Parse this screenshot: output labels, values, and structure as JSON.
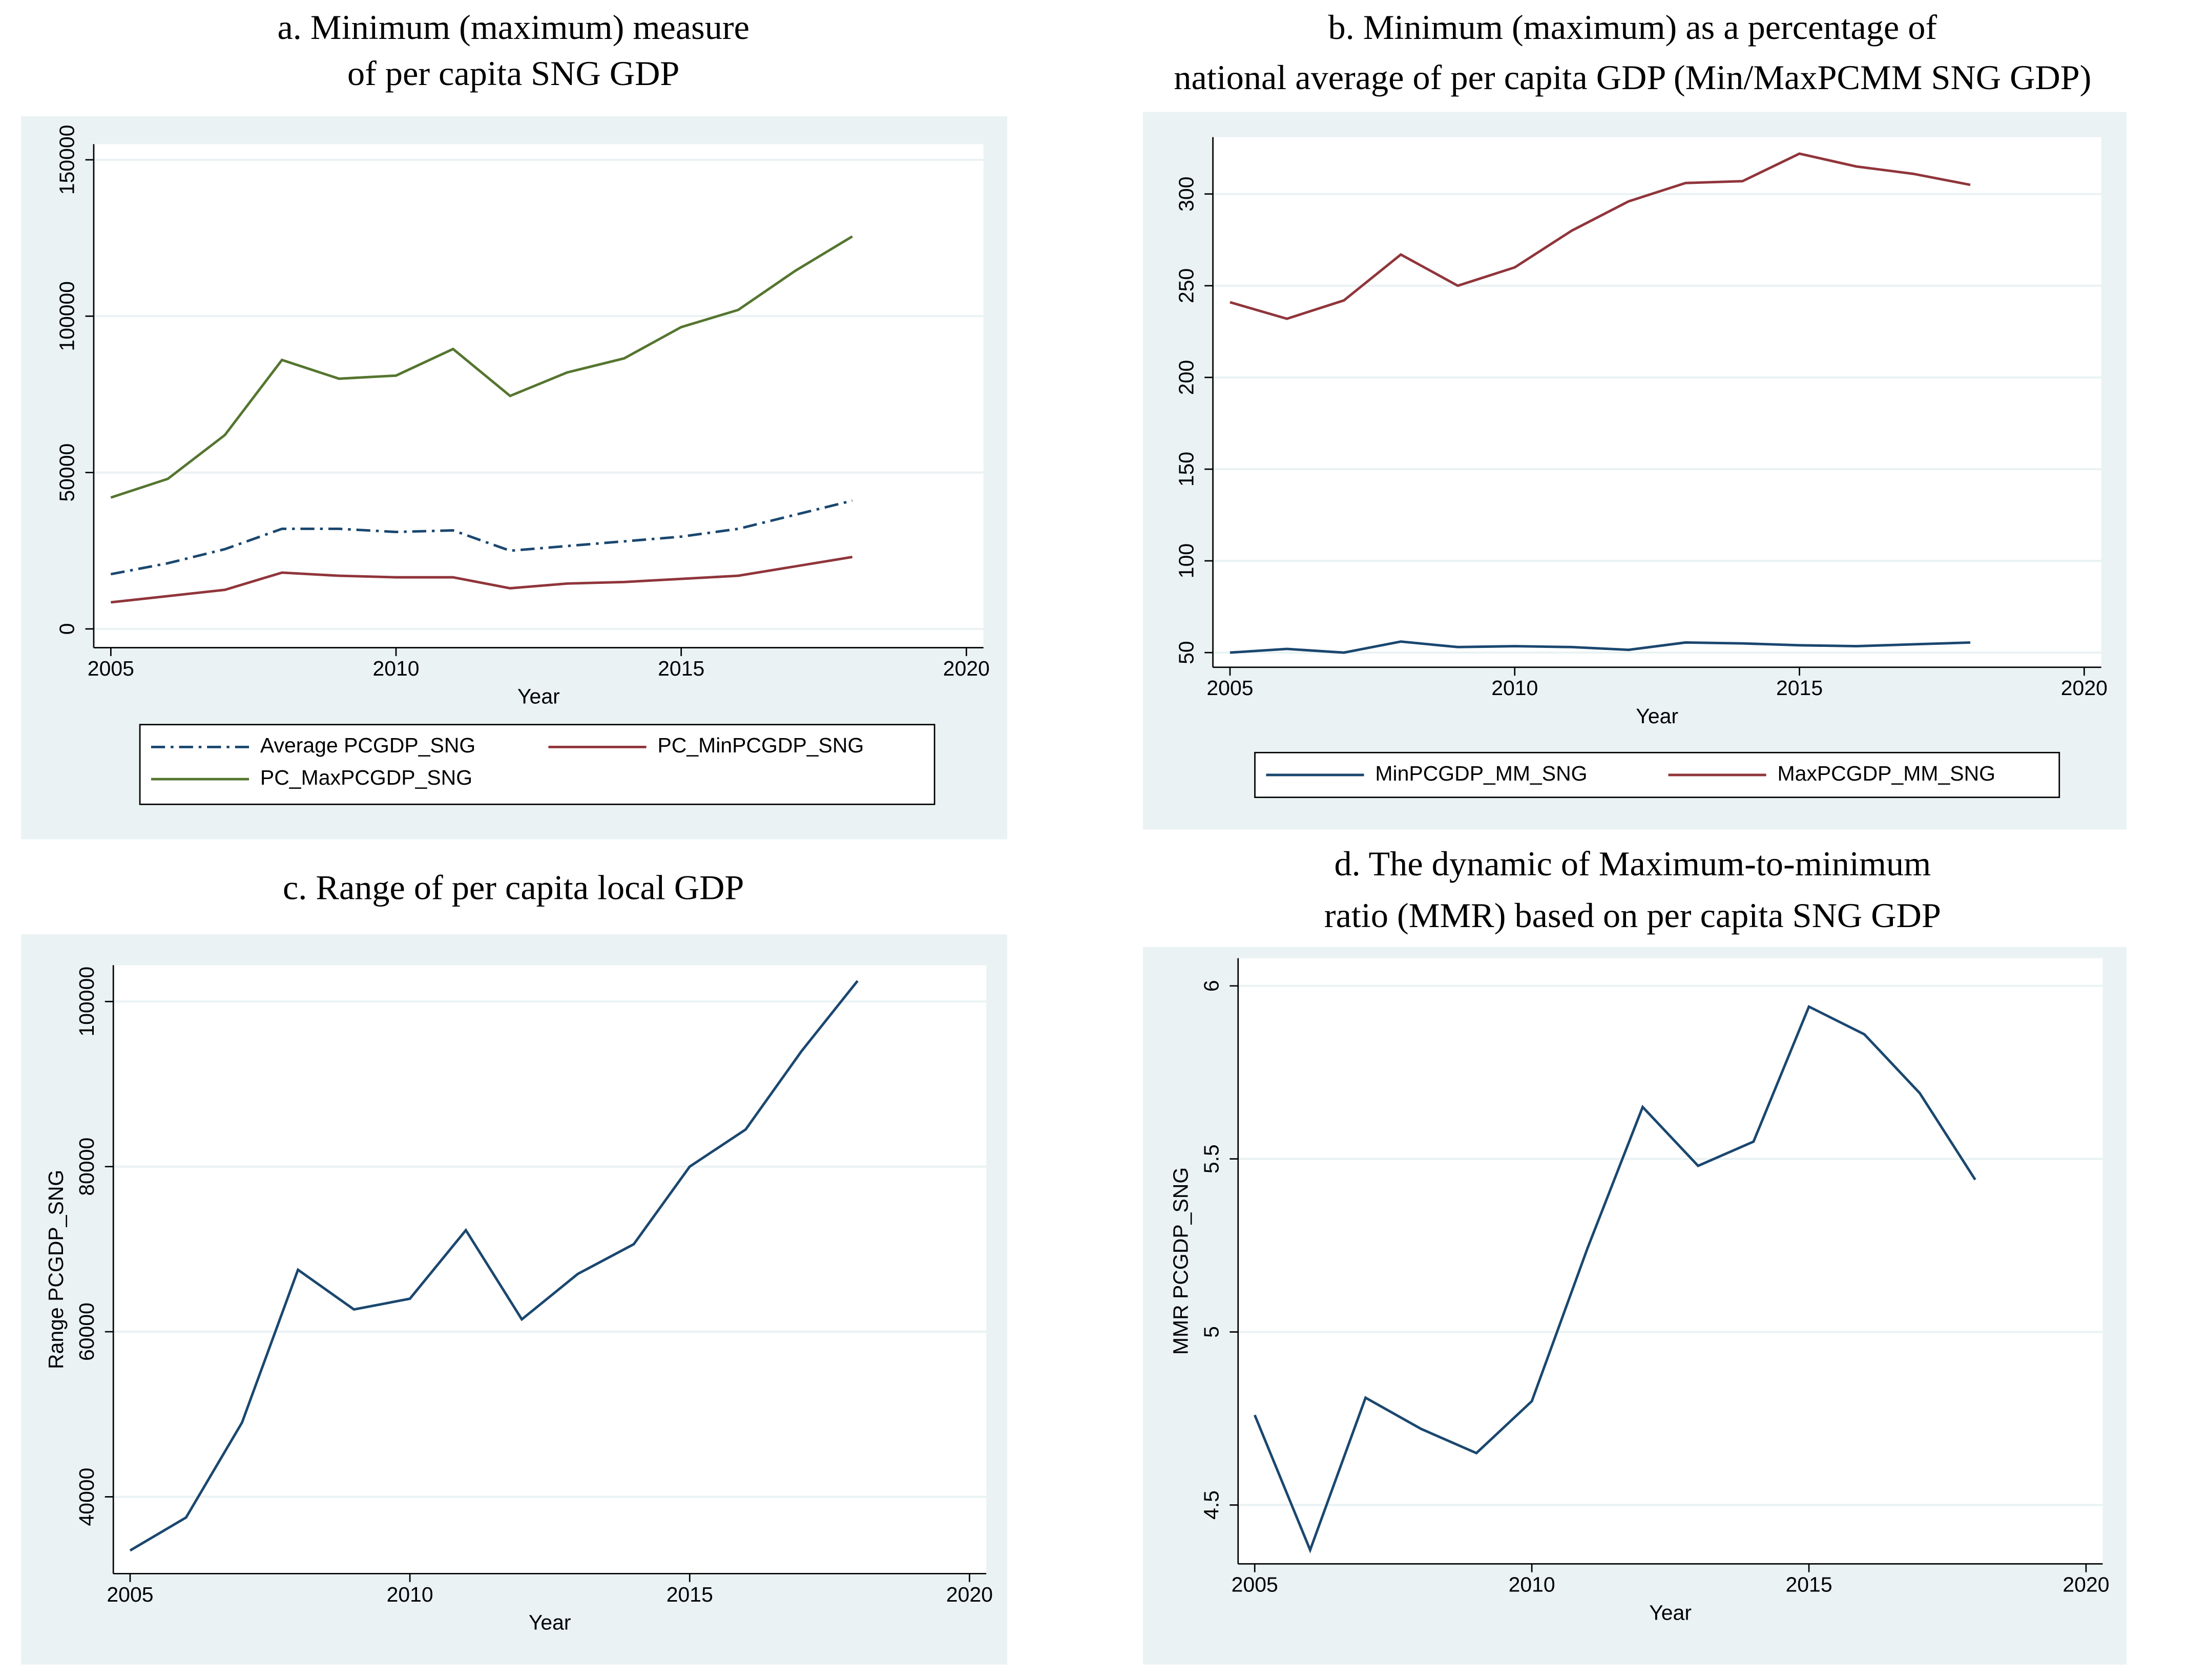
{
  "chart_data": [
    {
      "type": "line",
      "title": [
        "a. Minimum (maximum) measure",
        "of per capita SNG GDP"
      ],
      "x": [
        2005,
        2006,
        2007,
        2008,
        2009,
        2010,
        2011,
        2012,
        2013,
        2014,
        2015,
        2016,
        2017,
        2018
      ],
      "xlim": [
        2004.7,
        2020.3
      ],
      "xticks": [
        2005,
        2010,
        2015,
        2020
      ],
      "xlabel": "Year",
      "ylim": [
        -6000,
        155000
      ],
      "yticks": [
        0,
        50000,
        100000,
        150000
      ],
      "grid": true,
      "series": [
        {
          "name": "Average PCGDP_SNG",
          "color": "#1a476f",
          "dash": "dashdot",
          "values": [
            17500,
            21000,
            25500,
            32000,
            32000,
            31000,
            31500,
            25000,
            26500,
            28000,
            29500,
            32000,
            36500,
            41000
          ]
        },
        {
          "name": "PC_MinPCGDP_SNG",
          "color": "#90353b",
          "values": [
            8500,
            10500,
            12500,
            18000,
            17000,
            16500,
            16500,
            13000,
            14500,
            15000,
            16000,
            17000,
            20000,
            23000
          ]
        },
        {
          "name": "PC_MaxPCGDP_SNG",
          "color": "#55752f",
          "values": [
            42000,
            48000,
            62000,
            86000,
            80000,
            81000,
            89500,
            74500,
            82000,
            86500,
            96500,
            102000,
            114500,
            125500
          ]
        }
      ]
    },
    {
      "type": "line",
      "title": [
        "b. Minimum (maximum) as a percentage of",
        "national average of per capita GDP (Min/MaxPCMM SNG GDP)"
      ],
      "x": [
        2005,
        2006,
        2007,
        2008,
        2009,
        2010,
        2011,
        2012,
        2013,
        2014,
        2015,
        2016,
        2017,
        2018
      ],
      "xlim": [
        2004.7,
        2020.3
      ],
      "xticks": [
        2005,
        2010,
        2015,
        2020
      ],
      "xlabel": "Year",
      "ylim": [
        42,
        331
      ],
      "yticks": [
        50,
        100,
        150,
        200,
        250,
        300
      ],
      "grid": true,
      "series": [
        {
          "name": "MinPCGDP_MM_SNG",
          "color": "#1a476f",
          "values": [
            50,
            52,
            50,
            56,
            53,
            53.5,
            53,
            51.5,
            55.5,
            55,
            54,
            53.5,
            54.5,
            55.5
          ]
        },
        {
          "name": "MaxPCGDP_MM_SNG",
          "color": "#90353b",
          "values": [
            241,
            232,
            242,
            267,
            250,
            260,
            280,
            296,
            306,
            307,
            322,
            315,
            311,
            305
          ]
        }
      ]
    },
    {
      "type": "line",
      "title": [
        "c. Range of per capita local GDP"
      ],
      "x": [
        2005,
        2006,
        2007,
        2008,
        2009,
        2010,
        2011,
        2012,
        2013,
        2014,
        2015,
        2016,
        2017,
        2018
      ],
      "xlim": [
        2004.7,
        2020.3
      ],
      "xticks": [
        2005,
        2010,
        2015,
        2020
      ],
      "xlabel": "Year",
      "ylabel": "Range PCGDP_SNG",
      "ylim": [
        30700,
        104400
      ],
      "yticks": [
        40000,
        60000,
        80000,
        100000
      ],
      "grid": true,
      "series": [
        {
          "color": "#1a476f",
          "values": [
            33500,
            37500,
            49000,
            67500,
            62700,
            64000,
            72300,
            61500,
            67000,
            70600,
            80000,
            84500,
            94000,
            102500
          ]
        }
      ]
    },
    {
      "type": "line",
      "title": [
        "d. The dynamic of Maximum-to-minimum",
        "ratio (MMR) based on per capita SNG GDP"
      ],
      "x": [
        2005,
        2006,
        2007,
        2008,
        2009,
        2010,
        2011,
        2012,
        2013,
        2014,
        2015,
        2016,
        2017,
        2018
      ],
      "xlim": [
        2004.7,
        2020.3
      ],
      "xticks": [
        2005,
        2010,
        2015,
        2020
      ],
      "xlabel": "Year",
      "ylabel": "MMR PCGDP_SNG",
      "ylim": [
        4.33,
        6.08
      ],
      "yticks": [
        4.5,
        5,
        5.5,
        6
      ],
      "grid": true,
      "series": [
        {
          "color": "#1a476f",
          "values": [
            4.76,
            4.37,
            4.81,
            4.72,
            4.65,
            4.8,
            5.24,
            5.65,
            5.48,
            5.55,
            5.94,
            5.86,
            5.69,
            5.44
          ]
        }
      ]
    }
  ]
}
